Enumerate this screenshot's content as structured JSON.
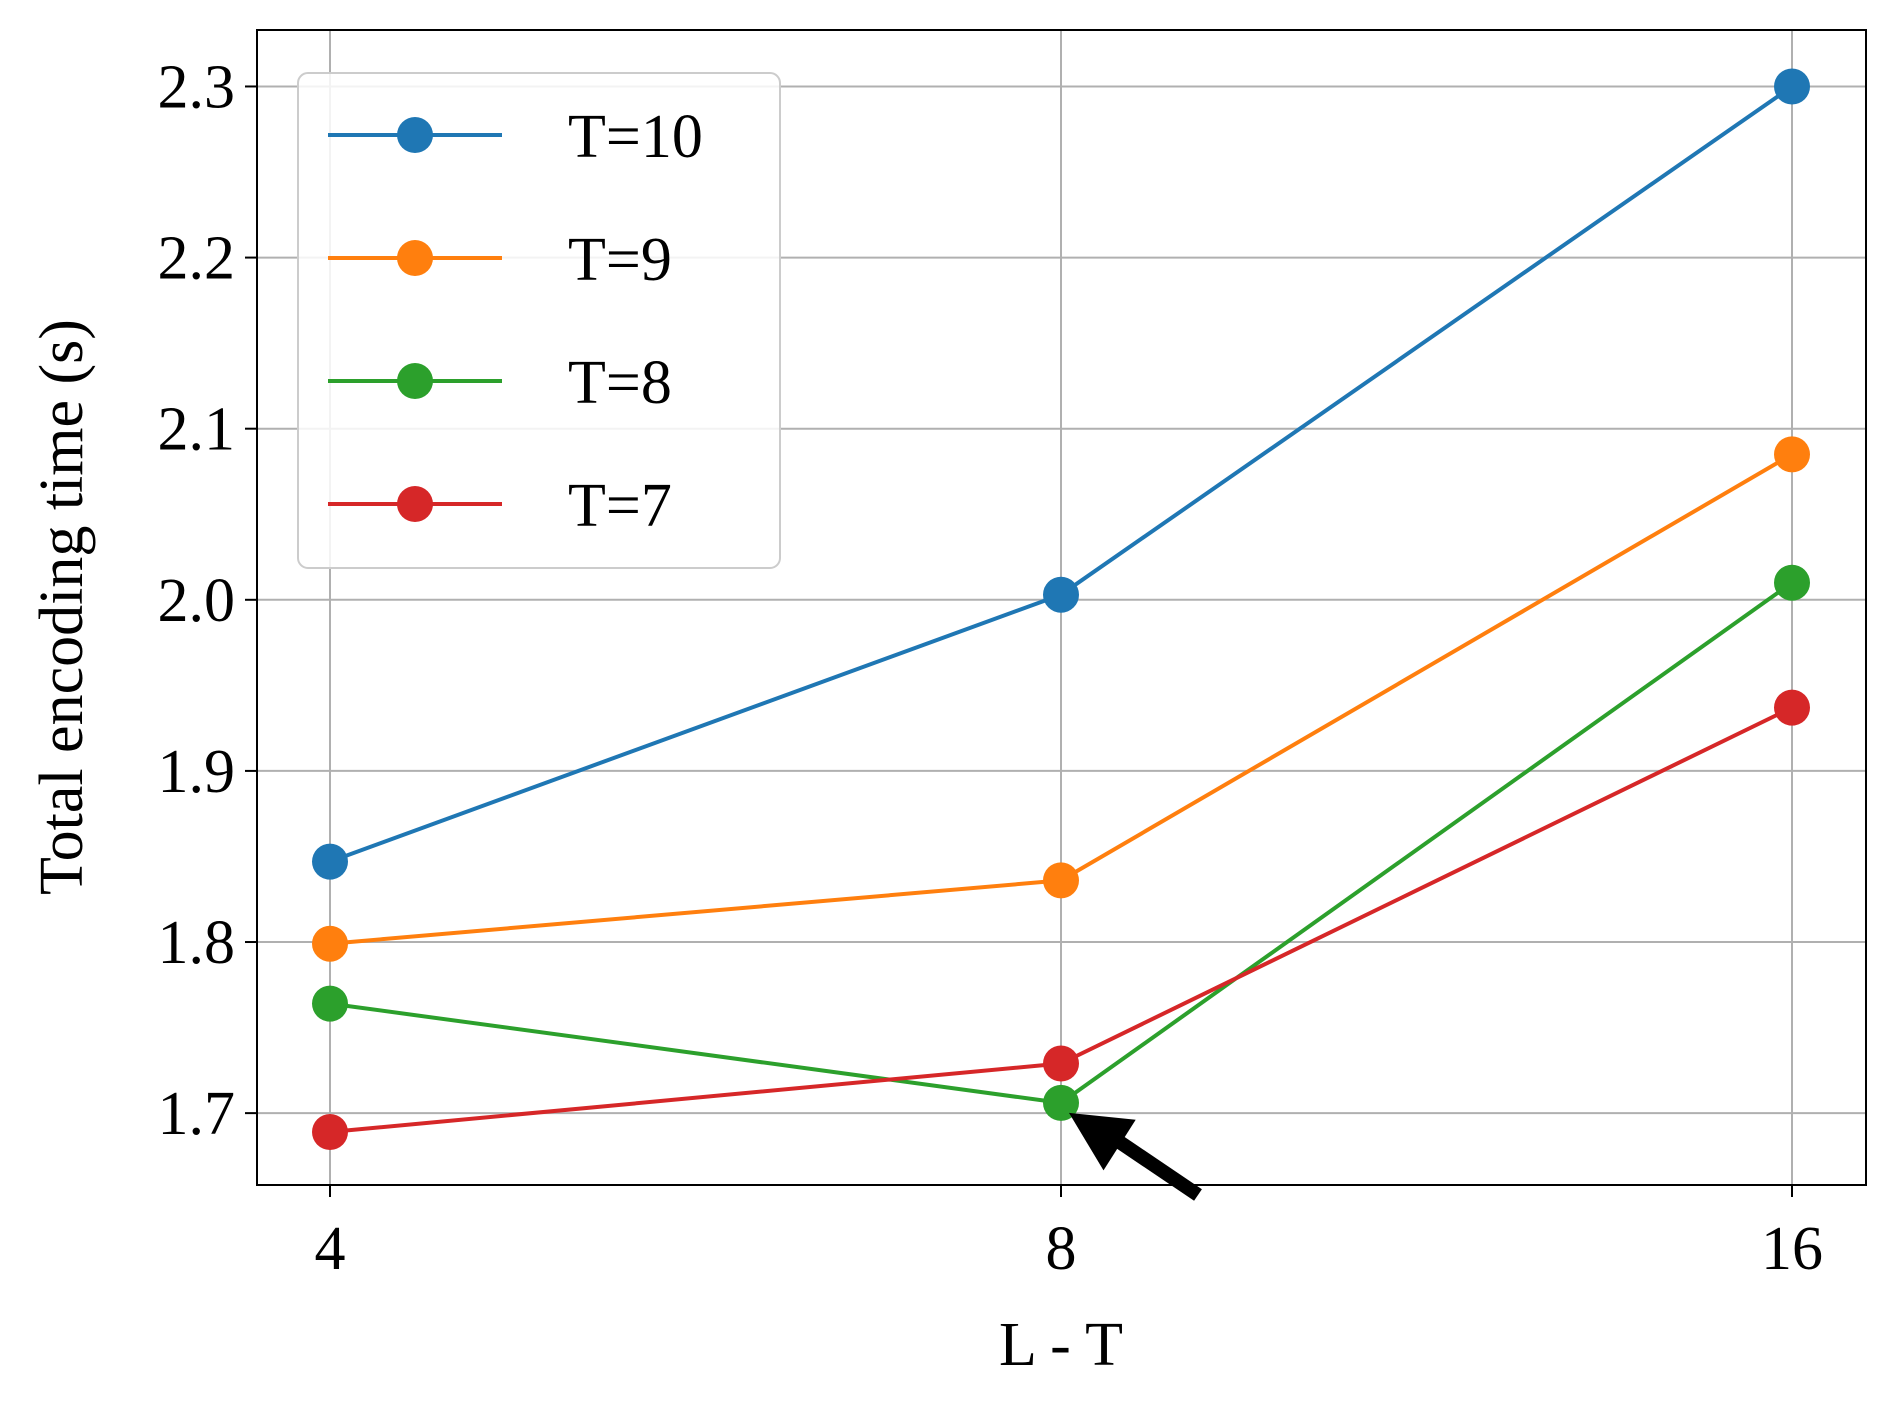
{
  "chart_data": {
    "type": "line",
    "title": "",
    "xlabel": "L - T",
    "ylabel": "Total encoding time (s)",
    "x": [
      4,
      8,
      16
    ],
    "x_tick_labels": [
      "4",
      "8",
      "16"
    ],
    "ylim": [
      1.658,
      2.333
    ],
    "y_ticks": [
      1.7,
      1.8,
      1.9,
      2.0,
      2.1,
      2.2,
      2.3
    ],
    "y_tick_labels": [
      "1.7",
      "1.8",
      "1.9",
      "2.0",
      "2.1",
      "2.2",
      "2.3"
    ],
    "grid": true,
    "legend_position": "top-left",
    "series": [
      {
        "name": "T=10",
        "color": "#1f77b4",
        "values": [
          1.847,
          2.003,
          2.3
        ]
      },
      {
        "name": "T=9",
        "color": "#ff7f0e",
        "values": [
          1.799,
          1.836,
          2.085
        ]
      },
      {
        "name": "T=8",
        "color": "#2ca02c",
        "values": [
          1.764,
          1.706,
          2.01
        ]
      },
      {
        "name": "T=7",
        "color": "#d62728",
        "values": [
          1.689,
          1.729,
          1.937
        ]
      }
    ],
    "annotations": [
      {
        "type": "arrow",
        "points_to_x": 8,
        "points_to_y": 1.706,
        "color": "#000000"
      }
    ]
  }
}
